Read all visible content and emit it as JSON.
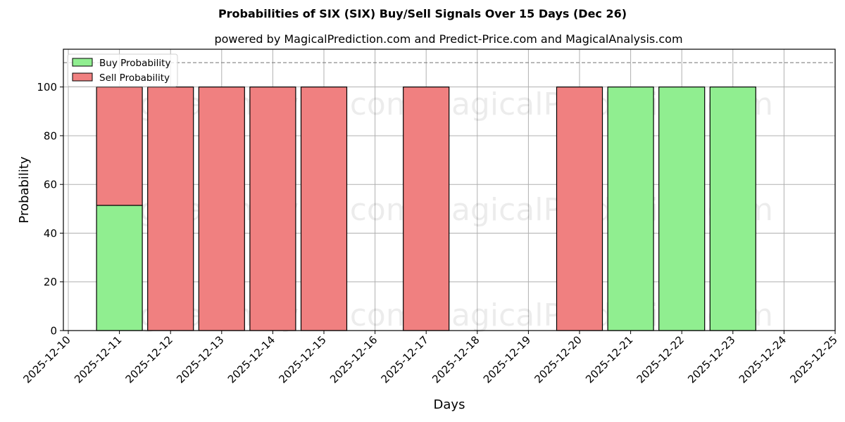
{
  "title": "Probabilities of SIX (SIX) Buy/Sell Signals Over 15 Days (Dec 26)",
  "subtitle": "powered by MagicalPrediction.com and Predict-Price.com and MagicalAnalysis.com",
  "watermarks": [
    "MagicalAnalysis.com",
    "MagicalPrediction.com"
  ],
  "colors": {
    "buy": "#90ee90",
    "sell": "#f08080",
    "edge": "#000000",
    "grid": "#b0b0b0",
    "threshold": "#808080"
  },
  "legend": {
    "buy_label": "Buy Probability",
    "sell_label": "Sell Probability"
  },
  "chart_data": {
    "type": "bar",
    "stacked": true,
    "title": "Probabilities of SIX (SIX) Buy/Sell Signals Over 15 Days (Dec 26)",
    "subtitle": "powered by MagicalPrediction.com and Predict-Price.com and MagicalAnalysis.com",
    "xlabel": "Days",
    "ylabel": "Probability",
    "ylim": [
      0,
      115.5
    ],
    "yticks": [
      0,
      20,
      40,
      60,
      80,
      100
    ],
    "xticks": [
      "2025-12-10",
      "2025-12-11",
      "2025-12-12",
      "2025-12-13",
      "2025-12-14",
      "2025-12-15",
      "2025-12-16",
      "2025-12-17",
      "2025-12-18",
      "2025-12-19",
      "2025-12-20",
      "2025-12-21",
      "2025-12-22",
      "2025-12-23",
      "2025-12-24",
      "2025-12-25"
    ],
    "categories": [
      "2025-12-11",
      "2025-12-12",
      "2025-12-13",
      "2025-12-14",
      "2025-12-15",
      "2025-12-17",
      "2025-12-20",
      "2025-12-21",
      "2025-12-22",
      "2025-12-23"
    ],
    "series": [
      {
        "name": "Buy Probability",
        "values": [
          51.4,
          0,
          0,
          0,
          0,
          0,
          0,
          100,
          100,
          100
        ]
      },
      {
        "name": "Sell Probability",
        "values": [
          48.6,
          100,
          100,
          100,
          100,
          100,
          100,
          0,
          0,
          0
        ]
      }
    ],
    "threshold_line": {
      "y": 110,
      "style": "dashed"
    },
    "grid": true,
    "legend_position": "upper left"
  }
}
